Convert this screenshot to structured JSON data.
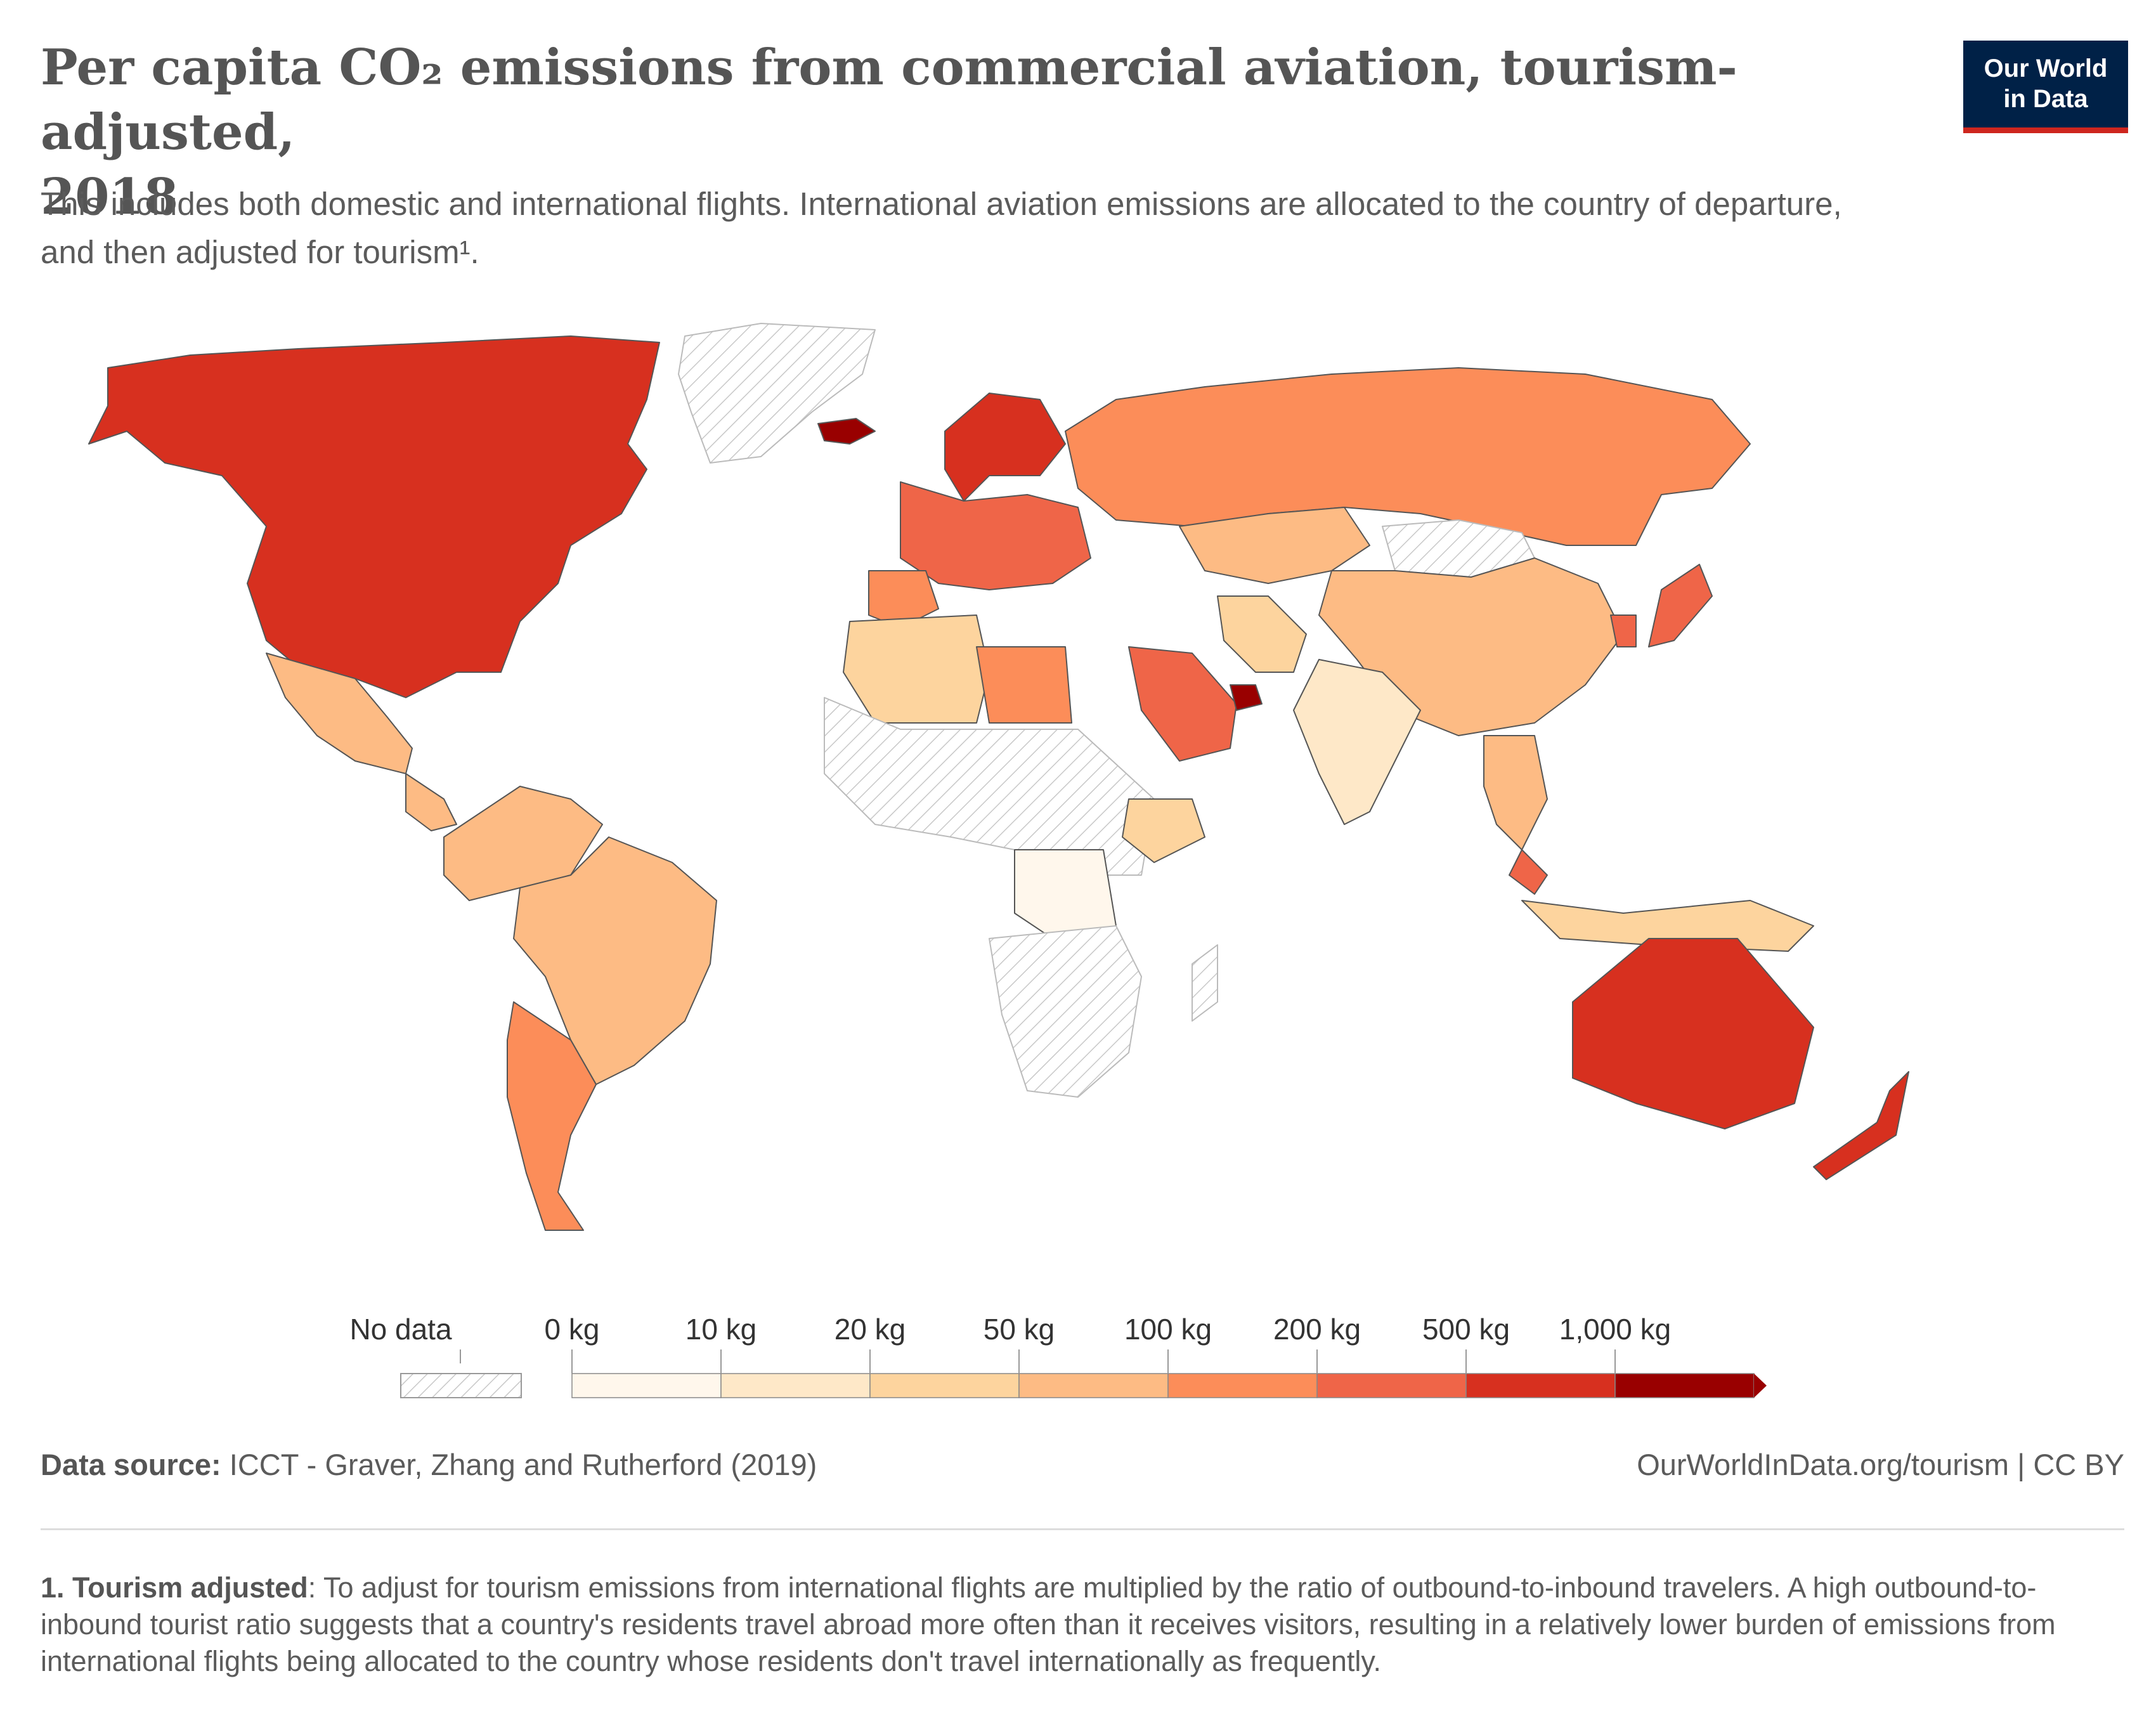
{
  "header": {
    "title_line1": "Per capita CO₂ emissions from commercial aviation, tourism-adjusted,",
    "title_line2": "2018",
    "subtitle_line1": "This includes both domestic and international flights. International aviation emissions are allocated to the country of departure,",
    "subtitle_line2": "and then adjusted for tourism¹."
  },
  "logo": {
    "line1": "Our World",
    "line2": "in Data",
    "bg_color": "#002147",
    "accent_color": "#ce261e"
  },
  "map": {
    "type": "choropleth",
    "unit": "kg",
    "year": 2018,
    "no_data_pattern": "diagonal-hatch",
    "regions": [
      {
        "name": "North America (US, Canada)",
        "bin": 6
      },
      {
        "name": "Greenland",
        "bin": -1
      },
      {
        "name": "Mexico",
        "bin": 3
      },
      {
        "name": "Central America",
        "bin": 3
      },
      {
        "name": "South America north",
        "bin": 3
      },
      {
        "name": "Brazil",
        "bin": 3
      },
      {
        "name": "Argentina/Chile",
        "bin": 4
      },
      {
        "name": "Iceland",
        "bin": 7
      },
      {
        "name": "Scandinavia",
        "bin": 6
      },
      {
        "name": "Western Europe",
        "bin": 5
      },
      {
        "name": "Iberia",
        "bin": 4
      },
      {
        "name": "Russia",
        "bin": 4
      },
      {
        "name": "Kazakhstan",
        "bin": 3
      },
      {
        "name": "Mongolia",
        "bin": -1
      },
      {
        "name": "China",
        "bin": 3
      },
      {
        "name": "India",
        "bin": 1
      },
      {
        "name": "Iran",
        "bin": 2
      },
      {
        "name": "Saudi Arabia",
        "bin": 5
      },
      {
        "name": "UAE",
        "bin": 7
      },
      {
        "name": "North Africa",
        "bin": 2
      },
      {
        "name": "Libya",
        "bin": 4
      },
      {
        "name": "West Africa",
        "bin": -1
      },
      {
        "name": "Ethiopia",
        "bin": 2
      },
      {
        "name": "Central Africa",
        "bin": 0
      },
      {
        "name": "Southern Africa",
        "bin": -1
      },
      {
        "name": "Madagascar",
        "bin": -1
      },
      {
        "name": "Southeast Asia",
        "bin": 3
      },
      {
        "name": "Malaysia",
        "bin": 5
      },
      {
        "name": "Indonesia",
        "bin": 2
      },
      {
        "name": "Japan",
        "bin": 5
      },
      {
        "name": "Korea",
        "bin": 5
      },
      {
        "name": "Australia",
        "bin": 6
      },
      {
        "name": "New Zealand",
        "bin": 6
      }
    ]
  },
  "legend": {
    "no_data_label": "No data",
    "labels": [
      "0 kg",
      "10 kg",
      "20 kg",
      "50 kg",
      "100 kg",
      "200 kg",
      "500 kg",
      "1,000 kg"
    ],
    "colors": [
      "#fff7ec",
      "#fee8c8",
      "#fdd49e",
      "#fdbb84",
      "#fc8d59",
      "#ef6548",
      "#d7301f",
      "#990000"
    ]
  },
  "footer": {
    "source_label": "Data source:",
    "source_text": "ICCT - Graver, Zhang and Rutherford (2019)",
    "url": "OurWorldInData.org/tourism | CC BY"
  },
  "note": {
    "label": "1. Tourism adjusted",
    "text": ": To adjust for tourism emissions from international flights are multiplied by the ratio of outbound-to-inbound travelers. A high outbound-to-inbound tourist ratio suggests that a country's residents travel abroad more often than it receives visitors, resulting in a relatively lower burden of emissions from international flights being allocated to the country whose residents don't travel internationally as frequently."
  }
}
